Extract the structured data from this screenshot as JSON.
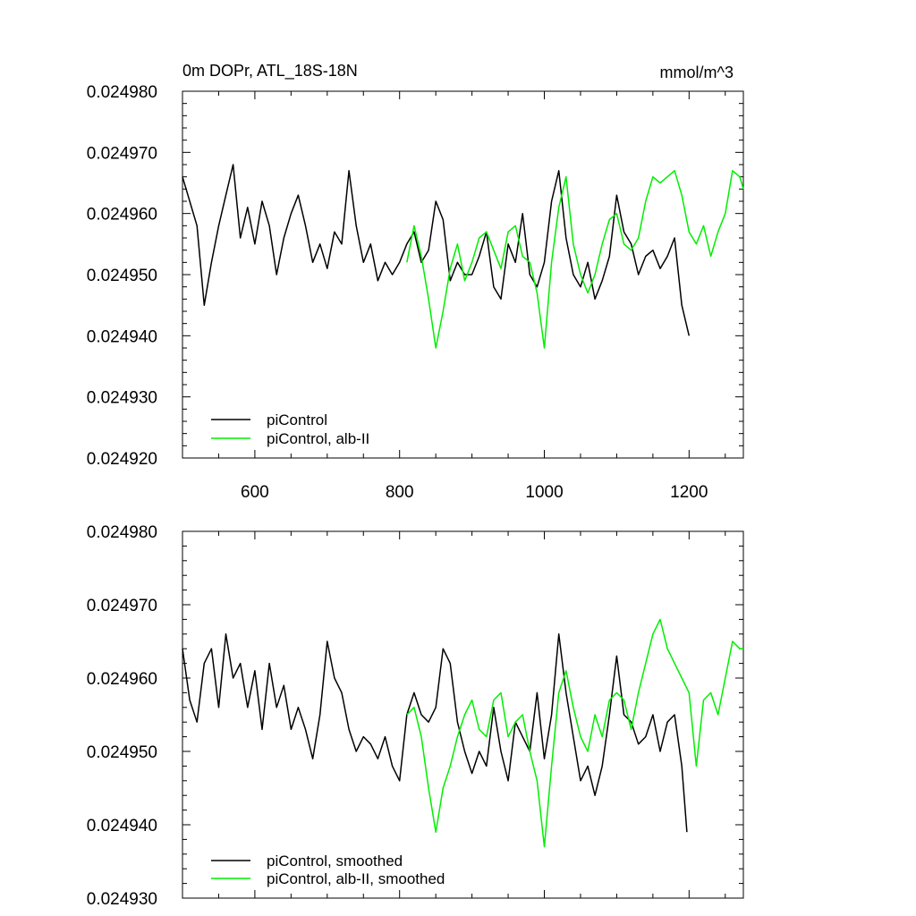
{
  "chart_data": [
    {
      "type": "line",
      "title": "0m DOPr, ATL_18S-18N",
      "units": "mmol/m^3",
      "xlim": [
        500,
        1275
      ],
      "ylim": [
        0.02492,
        0.02498
      ],
      "x_ticks": [
        600,
        800,
        1000,
        1200
      ],
      "x_tick_labels": [
        "600",
        "800",
        "1000",
        "1200"
      ],
      "y_ticks": [
        0.02492,
        0.02493,
        0.02494,
        0.02495,
        0.02496,
        0.02497,
        0.02498
      ],
      "y_tick_labels": [
        "0.024920",
        "0.024930",
        "0.024940",
        "0.024950",
        "0.024960",
        "0.024970",
        "0.024980"
      ],
      "legend": [
        "piControl",
        "piControl, alb-II"
      ],
      "legend_position": "bottom-left",
      "series": [
        {
          "name": "piControl",
          "color": "#000000",
          "x": [
            500,
            510,
            520,
            530,
            540,
            550,
            560,
            570,
            580,
            590,
            600,
            610,
            620,
            630,
            640,
            650,
            660,
            670,
            680,
            690,
            700,
            710,
            720,
            730,
            740,
            750,
            760,
            770,
            780,
            790,
            800,
            810,
            820,
            830,
            840,
            850,
            860,
            870,
            880,
            890,
            900,
            910,
            920,
            930,
            940,
            950,
            960,
            970,
            980,
            990,
            1000,
            1010,
            1020,
            1030,
            1040,
            1050,
            1060,
            1070,
            1080,
            1090,
            1100,
            1110,
            1120,
            1130,
            1140,
            1150,
            1160,
            1170,
            1180,
            1190,
            1200
          ],
          "values": [
            0.024966,
            0.024962,
            0.024958,
            0.024945,
            0.024952,
            0.024958,
            0.024963,
            0.024968,
            0.024956,
            0.024961,
            0.024955,
            0.024962,
            0.024958,
            0.02495,
            0.024956,
            0.02496,
            0.024963,
            0.024958,
            0.024952,
            0.024955,
            0.024951,
            0.024957,
            0.024955,
            0.024967,
            0.024958,
            0.024952,
            0.024955,
            0.024949,
            0.024952,
            0.02495,
            0.024952,
            0.024955,
            0.024957,
            0.024952,
            0.024954,
            0.024962,
            0.024959,
            0.024949,
            0.024952,
            0.02495,
            0.02495,
            0.024953,
            0.024957,
            0.024948,
            0.024946,
            0.024955,
            0.024952,
            0.02496,
            0.02495,
            0.024948,
            0.024952,
            0.024962,
            0.024967,
            0.024956,
            0.02495,
            0.024948,
            0.024952,
            0.024946,
            0.024949,
            0.024953,
            0.024963,
            0.024957,
            0.024955,
            0.02495,
            0.024953,
            0.024954,
            0.024951,
            0.024953,
            0.024956,
            0.024945,
            0.02494
          ]
        },
        {
          "name": "piControl, alb-II",
          "color": "#00ee00",
          "x": [
            810,
            820,
            830,
            840,
            850,
            860,
            870,
            880,
            890,
            900,
            910,
            920,
            930,
            940,
            950,
            960,
            970,
            980,
            990,
            1000,
            1010,
            1020,
            1030,
            1040,
            1050,
            1060,
            1070,
            1080,
            1090,
            1100,
            1110,
            1120,
            1130,
            1140,
            1150,
            1160,
            1170,
            1180,
            1190,
            1200,
            1210,
            1220,
            1230,
            1240,
            1250,
            1260,
            1270,
            1275
          ],
          "values": [
            0.024952,
            0.024958,
            0.024953,
            0.024946,
            0.024938,
            0.024944,
            0.024951,
            0.024955,
            0.024949,
            0.024952,
            0.024956,
            0.024957,
            0.024954,
            0.024951,
            0.024957,
            0.024958,
            0.024953,
            0.024952,
            0.024947,
            0.024938,
            0.024952,
            0.024961,
            0.024966,
            0.024955,
            0.02495,
            0.024947,
            0.02495,
            0.024955,
            0.024959,
            0.02496,
            0.024955,
            0.024954,
            0.024956,
            0.024962,
            0.024966,
            0.024965,
            0.024966,
            0.024967,
            0.024963,
            0.024957,
            0.024955,
            0.024958,
            0.024953,
            0.024957,
            0.02496,
            0.024967,
            0.024966,
            0.024964
          ]
        }
      ]
    },
    {
      "type": "line",
      "xlim": [
        500,
        1275
      ],
      "ylim": [
        0.02493,
        0.02498
      ],
      "x_ticks": [
        600,
        800,
        1000,
        1200
      ],
      "y_ticks": [
        0.02493,
        0.02494,
        0.02495,
        0.02496,
        0.02497,
        0.02498
      ],
      "y_tick_labels": [
        "0.024930",
        "0.024940",
        "0.024950",
        "0.024960",
        "0.024970",
        "0.024980"
      ],
      "legend": [
        "piControl, smoothed",
        "piControl, alb-II, smoothed"
      ],
      "legend_position": "bottom-left",
      "series": [
        {
          "name": "piControl, smoothed",
          "color": "#000000",
          "x": [
            500,
            510,
            520,
            530,
            540,
            550,
            560,
            570,
            580,
            590,
            600,
            610,
            620,
            630,
            640,
            650,
            660,
            670,
            680,
            690,
            700,
            710,
            720,
            730,
            740,
            750,
            760,
            770,
            780,
            790,
            800,
            810,
            820,
            830,
            840,
            850,
            860,
            870,
            880,
            890,
            900,
            910,
            920,
            930,
            940,
            950,
            960,
            970,
            980,
            990,
            1000,
            1010,
            1020,
            1030,
            1040,
            1050,
            1060,
            1070,
            1080,
            1090,
            1100,
            1110,
            1120,
            1130,
            1140,
            1150,
            1160,
            1170,
            1180,
            1190,
            1197
          ],
          "values": [
            0.024964,
            0.024957,
            0.024954,
            0.024962,
            0.024964,
            0.024956,
            0.024966,
            0.02496,
            0.024962,
            0.024956,
            0.024961,
            0.024953,
            0.024962,
            0.024956,
            0.024959,
            0.024953,
            0.024956,
            0.024953,
            0.024949,
            0.024955,
            0.024965,
            0.02496,
            0.024958,
            0.024953,
            0.02495,
            0.024952,
            0.024951,
            0.024949,
            0.024952,
            0.024948,
            0.024946,
            0.024955,
            0.024958,
            0.024955,
            0.024954,
            0.024956,
            0.024964,
            0.024962,
            0.024954,
            0.02495,
            0.024947,
            0.02495,
            0.024948,
            0.024956,
            0.02495,
            0.024946,
            0.024954,
            0.024952,
            0.02495,
            0.024958,
            0.024949,
            0.024955,
            0.024966,
            0.024958,
            0.024952,
            0.024946,
            0.024948,
            0.024944,
            0.024948,
            0.024955,
            0.024963,
            0.024955,
            0.024954,
            0.024951,
            0.024952,
            0.024955,
            0.02495,
            0.024954,
            0.024955,
            0.024948,
            0.024939
          ]
        },
        {
          "name": "piControl, alb-II, smoothed",
          "color": "#00ee00",
          "x": [
            810,
            820,
            830,
            840,
            850,
            860,
            870,
            880,
            890,
            900,
            910,
            920,
            930,
            940,
            950,
            960,
            970,
            980,
            990,
            1000,
            1010,
            1020,
            1030,
            1040,
            1050,
            1060,
            1070,
            1080,
            1090,
            1100,
            1110,
            1120,
            1130,
            1140,
            1150,
            1160,
            1170,
            1180,
            1190,
            1200,
            1210,
            1220,
            1230,
            1240,
            1250,
            1260,
            1270,
            1275
          ],
          "values": [
            0.024955,
            0.024956,
            0.024952,
            0.024945,
            0.024939,
            0.024945,
            0.024948,
            0.024952,
            0.024955,
            0.024957,
            0.024953,
            0.024952,
            0.024957,
            0.024958,
            0.024952,
            0.024954,
            0.024955,
            0.02495,
            0.024946,
            0.024937,
            0.024948,
            0.024958,
            0.024961,
            0.024956,
            0.024952,
            0.02495,
            0.024955,
            0.024952,
            0.024957,
            0.024958,
            0.024957,
            0.024953,
            0.024958,
            0.024962,
            0.024966,
            0.024968,
            0.024964,
            0.024962,
            0.02496,
            0.024958,
            0.024948,
            0.024957,
            0.024958,
            0.024955,
            0.02496,
            0.024965,
            0.024964,
            0.024964
          ]
        }
      ]
    }
  ]
}
